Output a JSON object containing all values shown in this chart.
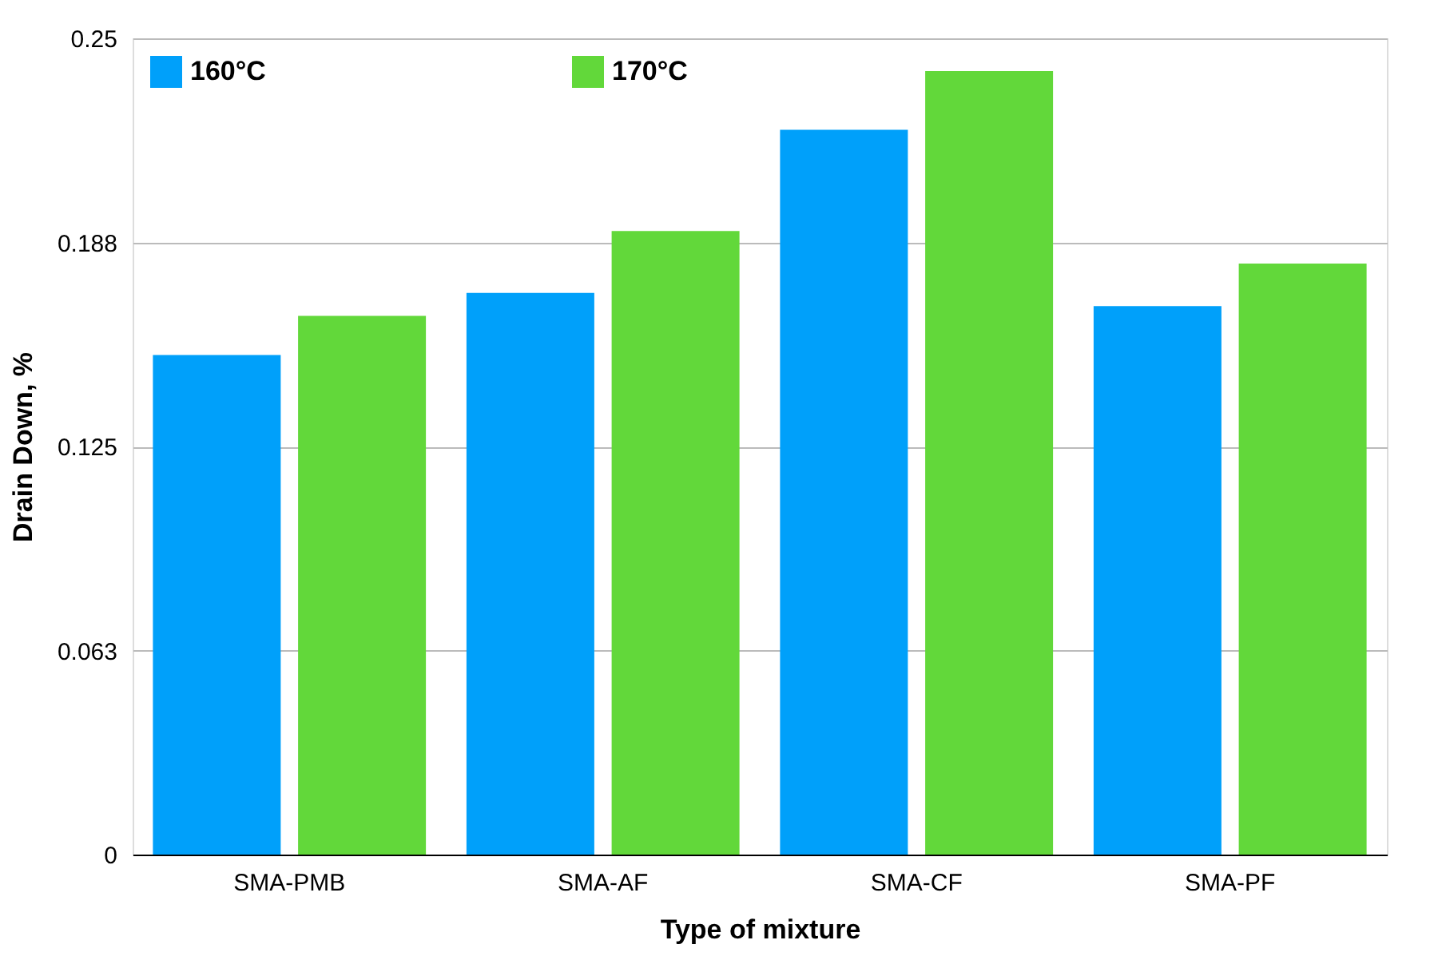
{
  "chart_data": {
    "type": "bar",
    "xlabel": "Type of mixture",
    "ylabel": "Drain Down, %",
    "categories": [
      "SMA-PMB",
      "SMA-AF",
      "SMA-CF",
      "SMA-PF"
    ],
    "series": [
      {
        "name": "160°C",
        "color": "#00a0fa",
        "values": [
          0.153,
          0.172,
          0.222,
          0.168
        ]
      },
      {
        "name": "170°C",
        "color": "#62d83a",
        "values": [
          0.165,
          0.191,
          0.24,
          0.181
        ]
      }
    ],
    "ylim": [
      0,
      0.25
    ],
    "yticks": [
      0,
      {
        "value": 0.0625,
        "label": "0.063"
      },
      0.125,
      {
        "value": 0.1875,
        "label": "0.188"
      },
      0.25
    ],
    "grid": "y",
    "legend": "top left"
  }
}
